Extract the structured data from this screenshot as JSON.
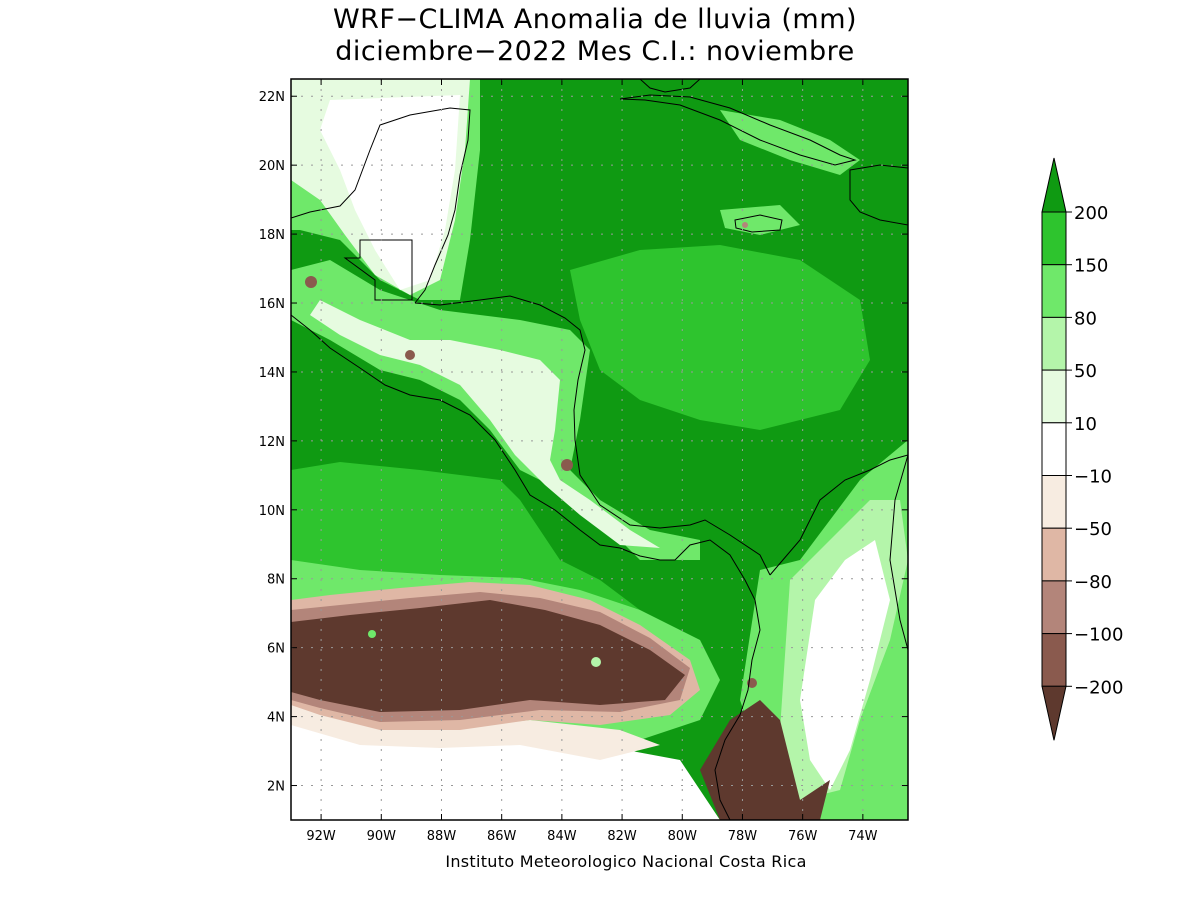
{
  "title": {
    "line1": "WRF−CLIMA Anomalia de lluvia (mm)",
    "line2": "diciembre−2022 Mes C.I.: noviembre"
  },
  "credit": "Instituto Meteorologico Nacional Costa Rica",
  "map": {
    "lon_range": [
      -93.0,
      -72.5
    ],
    "lat_range": [
      1.0,
      22.5
    ],
    "lat_ticks": [
      {
        "value": 22,
        "label": "22N"
      },
      {
        "value": 20,
        "label": "20N"
      },
      {
        "value": 18,
        "label": "18N"
      },
      {
        "value": 16,
        "label": "16N"
      },
      {
        "value": 14,
        "label": "14N"
      },
      {
        "value": 12,
        "label": "12N"
      },
      {
        "value": 10,
        "label": "10N"
      },
      {
        "value": 8,
        "label": "8N"
      },
      {
        "value": 6,
        "label": "6N"
      },
      {
        "value": 4,
        "label": "4N"
      },
      {
        "value": 2,
        "label": "2N"
      }
    ],
    "lon_ticks": [
      {
        "value": -92,
        "label": "92W"
      },
      {
        "value": -90,
        "label": "90W"
      },
      {
        "value": -88,
        "label": "88W"
      },
      {
        "value": -86,
        "label": "86W"
      },
      {
        "value": -84,
        "label": "84W"
      },
      {
        "value": -82,
        "label": "82W"
      },
      {
        "value": -80,
        "label": "80W"
      },
      {
        "value": -78,
        "label": "78W"
      },
      {
        "value": -76,
        "label": "76W"
      },
      {
        "value": -74,
        "label": "74W"
      }
    ]
  },
  "colorbar": {
    "levels": [
      {
        "label": "200",
        "color": "#0f9a12"
      },
      {
        "label": "150",
        "color": "#2ec42e"
      },
      {
        "label": "80",
        "color": "#6fe86a"
      },
      {
        "label": "50",
        "color": "#b4f5aa"
      },
      {
        "label": "10",
        "color": "#e6fbe0"
      },
      {
        "label": "−10",
        "color": "#ffffff"
      },
      {
        "label": "−50",
        "color": "#f7ece1"
      },
      {
        "label": "−80",
        "color": "#dfb7a5"
      },
      {
        "label": "−100",
        "color": "#b3857a"
      },
      {
        "label": "−200",
        "color": "#8a5a4e"
      }
    ],
    "top_color": "#0f9a12",
    "bottom_color": "#5e392e"
  },
  "colors": {
    "deep_green": "#0f9a12",
    "green": "#2ec42e",
    "light_green": "#6fe86a",
    "pale_green": "#b4f5aa",
    "faint_green": "#e6fbe0",
    "cream": "#f7ece1",
    "tan": "#dfb7a5",
    "brown": "#b3857a",
    "dark_brown": "#8a5a4e",
    "darkest_brown": "#5e392e"
  }
}
